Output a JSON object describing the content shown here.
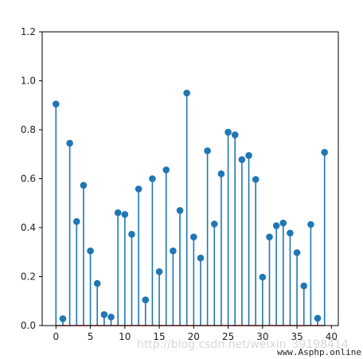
{
  "chart_data": {
    "type": "stem",
    "x": [
      0,
      1,
      2,
      3,
      4,
      5,
      6,
      7,
      8,
      9,
      10,
      11,
      12,
      13,
      14,
      15,
      16,
      17,
      18,
      19,
      20,
      21,
      22,
      23,
      24,
      25,
      26,
      27,
      28,
      29,
      30,
      31,
      32,
      33,
      34,
      35,
      36,
      37,
      38,
      39
    ],
    "values": [
      0.905,
      0.028,
      0.745,
      0.425,
      0.573,
      0.305,
      0.172,
      0.045,
      0.035,
      0.461,
      0.454,
      0.373,
      0.558,
      0.105,
      0.6,
      0.22,
      0.636,
      0.305,
      0.47,
      0.95,
      0.362,
      0.276,
      0.714,
      0.415,
      0.62,
      0.79,
      0.779,
      0.678,
      0.695,
      0.597,
      0.198,
      0.362,
      0.408,
      0.419,
      0.378,
      0.298,
      0.162,
      0.413,
      0.03,
      0.708
    ],
    "xlim": [
      -2,
      41
    ],
    "ylim": [
      0,
      1.2
    ],
    "xticks": [
      "0",
      "5",
      "10",
      "15",
      "20",
      "25",
      "30",
      "35",
      "40"
    ],
    "yticks": [
      "0.0",
      "0.2",
      "0.4",
      "0.6",
      "0.8",
      "1.0",
      "1.2"
    ],
    "colors": {
      "stem": "#1f77b4",
      "baseline": "#d62728",
      "axis": "#000000"
    }
  },
  "watermark": {
    "blog": "http://blog.csdn.net/weixin_39198414",
    "site": "www.Asphp.online"
  }
}
